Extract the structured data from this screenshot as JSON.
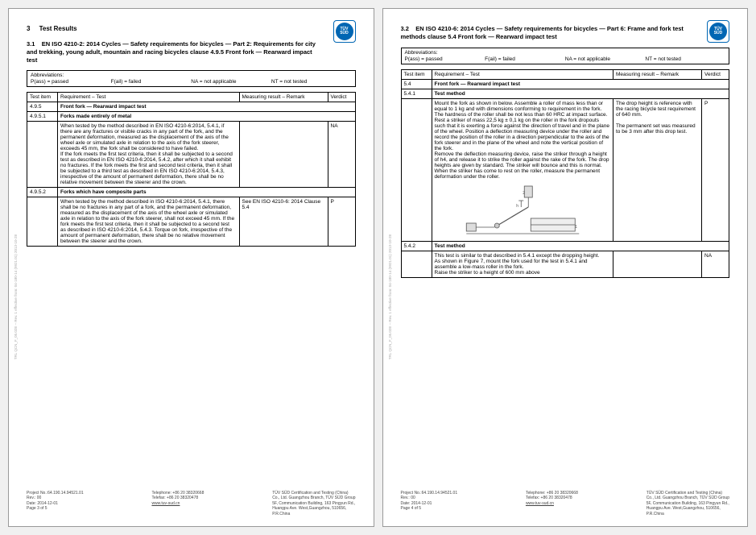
{
  "logo": {
    "line1": "TÜV",
    "line2": "SÜD"
  },
  "abbrev": {
    "title": "Abbreviations:",
    "pass": "P(ass) = passed",
    "fail": "F(ail) = failed",
    "na": "NA = not applicable",
    "nt": "NT = not tested"
  },
  "headers": {
    "item": "Test item",
    "req": "Requirement  – Test",
    "result": "Measuring result – Remark",
    "verdict": "Verdict"
  },
  "page1": {
    "sec_num": "3",
    "sec_title": "Test Results",
    "subtitle_num": "3.1",
    "subtitle": "EN ISO 4210-2: 2014 Cycles — Safety requirements for bicycles — Part 2: Requirements for city and trekking, young adult, mountain and racing bicycles clause 4.9.5 Front fork — Rearward impact test",
    "rows": [
      {
        "item": "4.9.5",
        "req_bold": "Front fork — Rearward impact test",
        "result": "",
        "verdict": ""
      },
      {
        "item": "4.9.5.1",
        "req_bold": "Forks made entirely of metal",
        "result": "",
        "verdict": ""
      },
      {
        "item": "",
        "req": "When tested by the method described in EN ISO 4210-6:2014, 5.4.1, if there are any fractures or visible cracks in any part of the fork, and the permanent deformation, measured as the displacement of the axis of the wheel axle or simulated axle in relation to the axis of the fork steerer, exceeds 45 mm, the fork shall be considered to have failed.\nIf the fork meets the first test criteria, then it shall be subjected to a second test as described in EN ISO 4210-6:2014, 5.4.2, after which it shall exhibit no fractures. If the fork meets the first and second test criteria, then it shall be subjected to a third test as described in EN ISO 4210-6:2014, 5.4.3, irrespective of the amount of permanent deformation, there shall be no relative movement between the steerer and the crown.",
        "result": "",
        "verdict": "NA"
      },
      {
        "item": "4.9.5.2",
        "req_bold": "Forks which have composite parts",
        "result": "",
        "verdict": ""
      },
      {
        "item": "",
        "req": "When tested by the method described in ISO 4210-6:2014, 5.4.1, there shall be no fractures in any part of a fork, and the permanent deformation, measured as the displacement of the axis of the wheel axle or simulated axle in relation to the axis of the fork steerer, shall not exceed 45 mm. If the fork meets the first test criteria, then it shall be subjected to a second test as described in ISO 4210-6:2014, 5.4.3. Torque on fork, irrespective of the amount of permanent deformation, there shall be no relative movement between the steerer and the crown.",
        "result": "See EN ISO 4210-6: 2014 Clause 5.4",
        "verdict": "P"
      }
    ]
  },
  "page2": {
    "subtitle_num": "3.2",
    "subtitle": "EN ISO 4210-6: 2014 Cycles — Safety requirements for bicycles — Part 6: Frame and fork test methods clause 5.4 Front fork — Rearward impact test",
    "rows": [
      {
        "item": "5.4",
        "req_bold": "Front fork — Rearward impact test",
        "result": "",
        "verdict": ""
      },
      {
        "item": "5.4.1",
        "req_bold": "Test method",
        "result": "",
        "verdict": ""
      },
      {
        "item": "",
        "req": "Mount the fork as shown in below. Assemble a roller of mass less than or equal to 1 kg and with dimensions conforming to requirement in the fork. The hardness of the roller shall be not less than 60 HRC at impact surface.\nRest a striker of mass 22,5 kg ± 0,1 kg on the roller in the fork dropouts such that it is exerting a force against the direction of travel and in the plane of the wheel. Position a deflection measuring device under the roller and record the position of the roller in a direction perpendicular to the axis of the fork steerer and in the plane of the wheel and note the vertical position of the fork.\nRemove the deflection measuring device, raise the striker through a height of h4, and release it to strike the roller against the rake of the fork. The drop heights are given by standard. The striker will bounce and this is normal. When the striker has come to rest on the roller, measure the permanent deformation under the roller.",
        "result": "The drop height is reference with the racing bicycle test requirement of 640 mm.\n\nThe permanent set was measured to be 3 mm after this drop test.",
        "verdict": "P",
        "diagram": true
      },
      {
        "item": "5.4.2",
        "req_bold": "Test method",
        "result": "",
        "verdict": ""
      },
      {
        "item": "",
        "req": "This test is similar to that described in 5.4.1 except the dropping height.\nAs shown in Figure 7, mount the fork used for the test in 5.4.1 and assemble a low-mass roller in the fork.\nRaise the striker to a height of 600 mm above",
        "result": "",
        "verdict": "NA"
      }
    ]
  },
  "footer": {
    "left": {
      "l1": "Project No.:64.190.14.94521.01",
      "l2": "Rev.: 00",
      "l3": "Date: 2014-12-01"
    },
    "mid": {
      "l1": "Telephone: +86 20 38320668",
      "l2": "Telefax:     +86 20 38320478",
      "l3": "",
      "l4": "www.tuv-sud.cn"
    },
    "right": {
      "l1": "TÜV SÜD Certification and Testing (China)",
      "l2": "Co., Ltd. Guangzhou Branch, TÜV SÜD Group",
      "l3": "5F, Communication Building, 163 Pingyun Rd.,",
      "l4": "Huangpu Ave. West,Guangzhou, 510656,",
      "l5": "P.R.China"
    },
    "page_left_num": "Page 3 of 5",
    "page_right_num": "Page 4 of 5"
  },
  "side": "TRL QCN_F_05.02E – Rev. 1   effective from: 04-180-14 (9921.01)   2013-10-28"
}
